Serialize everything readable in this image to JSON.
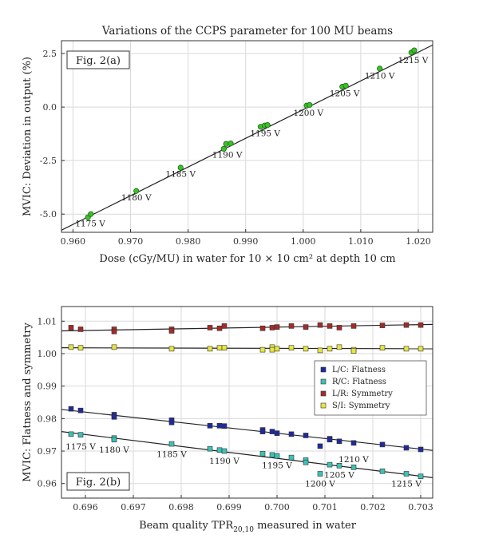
{
  "chart_data": [
    {
      "type": "scatter",
      "title": "Variations of the CCPS parameter for 100 MU beams",
      "panel_label": "Fig. 2(a)",
      "xlabel": "Dose (cGy/MU) in water for 10 × 10 cm² at depth 10 cm",
      "ylabel": "MVIC: Deviation in output (%)",
      "xlim": [
        0.958,
        1.0225
      ],
      "ylim": [
        -5.85,
        3.1
      ],
      "xticks": [
        0.96,
        0.97,
        0.98,
        0.99,
        1.0,
        1.01,
        1.02
      ],
      "xtick_labels": [
        "0.960",
        "0.970",
        "0.980",
        "0.990",
        "1.000",
        "1.010",
        "1.020"
      ],
      "yticks": [
        -5.0,
        -2.5,
        0.0,
        2.5
      ],
      "ytick_labels": [
        "-5.0",
        "-2.5",
        "0.0",
        "2.5"
      ],
      "grid": true,
      "marker_color": "#3cbf2b",
      "line_color": "#222222",
      "points": [
        {
          "x": 0.9626,
          "y": -5.15
        },
        {
          "x": 0.9631,
          "y": -5.0
        },
        {
          "x": 0.971,
          "y": -3.92
        },
        {
          "x": 0.9787,
          "y": -2.83
        },
        {
          "x": 0.9862,
          "y": -1.95
        },
        {
          "x": 0.9866,
          "y": -1.72
        },
        {
          "x": 0.9874,
          "y": -1.7
        },
        {
          "x": 0.9926,
          "y": -0.92
        },
        {
          "x": 0.9933,
          "y": -0.86
        },
        {
          "x": 0.9938,
          "y": -0.84
        },
        {
          "x": 1.0006,
          "y": 0.07
        },
        {
          "x": 1.0011,
          "y": 0.1
        },
        {
          "x": 1.0068,
          "y": 0.95
        },
        {
          "x": 1.0074,
          "y": 1.0
        },
        {
          "x": 1.0133,
          "y": 1.8
        },
        {
          "x": 1.0188,
          "y": 2.55
        },
        {
          "x": 1.0193,
          "y": 2.65
        }
      ],
      "fit_line": [
        {
          "x": 0.958,
          "y": -5.75
        },
        {
          "x": 1.0225,
          "y": 2.9
        }
      ],
      "annotations": [
        {
          "text": "1175 V",
          "x": 0.963,
          "y": -5.42
        },
        {
          "text": "1180 V",
          "x": 0.971,
          "y": -4.2
        },
        {
          "text": "1185 V",
          "x": 0.9787,
          "y": -3.1
        },
        {
          "text": "1190 V",
          "x": 0.9868,
          "y": -2.22
        },
        {
          "text": "1195 V",
          "x": 0.9934,
          "y": -1.2
        },
        {
          "text": "1200 V",
          "x": 1.0009,
          "y": -0.25
        },
        {
          "text": "1205 V",
          "x": 1.0072,
          "y": 0.65
        },
        {
          "text": "1210 V",
          "x": 1.0133,
          "y": 1.47
        },
        {
          "text": "1215 V",
          "x": 1.0191,
          "y": 2.2
        }
      ]
    },
    {
      "type": "scatter",
      "panel_label": "Fig. 2(b)",
      "xlabel": "Beam quality TPR",
      "xlabel_subscript": "20,10",
      "xlabel_suffix": " measured in water",
      "ylabel": "MVIC: Flatness and symmetry",
      "xlim": [
        0.6955,
        0.70325
      ],
      "ylim": [
        0.9555,
        1.0145
      ],
      "xticks": [
        0.696,
        0.697,
        0.698,
        0.699,
        0.7,
        0.701,
        0.702,
        0.703
      ],
      "xtick_labels": [
        "0.696",
        "0.697",
        "0.698",
        "0.699",
        "0.700",
        "0.701",
        "0.702",
        "0.703"
      ],
      "yticks": [
        0.96,
        0.97,
        0.98,
        0.99,
        1.0,
        1.01
      ],
      "ytick_labels": [
        "0.96",
        "0.97",
        "0.98",
        "0.99",
        "1.00",
        "1.01"
      ],
      "grid": true,
      "legend": "right",
      "series": [
        {
          "name": "L/C: Flatness",
          "color": "#1f2b9a",
          "x": [
            0.6957,
            0.6959,
            0.6966,
            0.6966,
            0.6978,
            0.6978,
            0.6986,
            0.6988,
            0.6989,
            0.6997,
            0.6997,
            0.6999,
            0.7,
            0.7003,
            0.7006,
            0.7009,
            0.7011,
            0.7011,
            0.7013,
            0.7016,
            0.7022,
            0.7027,
            0.703
          ],
          "y": [
            0.983,
            0.9825,
            0.9812,
            0.9805,
            0.9795,
            0.9788,
            0.9778,
            0.9778,
            0.9777,
            0.9765,
            0.976,
            0.976,
            0.9755,
            0.9752,
            0.9748,
            0.9715,
            0.9738,
            0.9735,
            0.973,
            0.9725,
            0.972,
            0.971,
            0.9705
          ]
        },
        {
          "name": "R/C: Flatness",
          "color": "#3cc1b5",
          "x": [
            0.6957,
            0.6959,
            0.6966,
            0.6966,
            0.6978,
            0.6986,
            0.6988,
            0.6989,
            0.6997,
            0.6999,
            0.7,
            0.7003,
            0.7006,
            0.7006,
            0.7009,
            0.7011,
            0.7013,
            0.7016,
            0.7022,
            0.7027,
            0.703
          ],
          "y": [
            0.9752,
            0.975,
            0.974,
            0.9735,
            0.9722,
            0.9707,
            0.9703,
            0.97,
            0.9692,
            0.9688,
            0.9685,
            0.968,
            0.9672,
            0.9665,
            0.963,
            0.9658,
            0.9655,
            0.965,
            0.9638,
            0.963,
            0.9622
          ]
        },
        {
          "name": "L/R: Symmetry",
          "color": "#a52a2a",
          "x": [
            0.6957,
            0.6959,
            0.6966,
            0.6966,
            0.6978,
            0.6978,
            0.6986,
            0.6988,
            0.6989,
            0.6997,
            0.6999,
            0.7,
            0.7003,
            0.7006,
            0.7009,
            0.7011,
            0.7013,
            0.7016,
            0.7022,
            0.7027,
            0.703
          ],
          "y": [
            1.008,
            1.0075,
            1.0075,
            1.0068,
            1.0075,
            1.007,
            1.008,
            1.0078,
            1.0085,
            1.0078,
            1.008,
            1.0082,
            1.0085,
            1.0082,
            1.0088,
            1.0085,
            1.008,
            1.0085,
            1.0087,
            1.0088,
            1.0088
          ]
        },
        {
          "name": "S/I: Symmetry",
          "color": "#e6e640",
          "x": [
            0.6957,
            0.6959,
            0.6966,
            0.6978,
            0.6986,
            0.6988,
            0.6989,
            0.6997,
            0.6999,
            0.6999,
            0.7,
            0.7003,
            0.7006,
            0.7009,
            0.7011,
            0.7013,
            0.7016,
            0.7016,
            0.7022,
            0.7027,
            0.703
          ],
          "y": [
            1.002,
            1.0018,
            1.002,
            1.0015,
            1.0015,
            1.0018,
            1.0018,
            1.0012,
            1.002,
            1.0012,
            1.0015,
            1.0018,
            1.0015,
            1.001,
            1.0015,
            1.002,
            1.0012,
            1.0008,
            1.0018,
            1.0015,
            1.0015
          ]
        }
      ],
      "fit_lines": [
        {
          "color": "#222222",
          "points": [
            {
              "x": 0.6955,
              "y": 1.007
            },
            {
              "x": 0.70325,
              "y": 1.009
            }
          ]
        },
        {
          "color": "#222222",
          "points": [
            {
              "x": 0.6955,
              "y": 1.0018
            },
            {
              "x": 0.70325,
              "y": 1.0015
            }
          ]
        },
        {
          "color": "#222222",
          "points": [
            {
              "x": 0.6955,
              "y": 0.9828
            },
            {
              "x": 0.70325,
              "y": 0.9702
            }
          ]
        },
        {
          "color": "#222222",
          "points": [
            {
              "x": 0.6955,
              "y": 0.976
            },
            {
              "x": 0.70325,
              "y": 0.9618
            }
          ]
        }
      ],
      "annotations": [
        {
          "text": "1175 V",
          "x": 0.6959,
          "y": 0.9715
        },
        {
          "text": "1180 V",
          "x": 0.6966,
          "y": 0.9705
        },
        {
          "text": "1185 V",
          "x": 0.6978,
          "y": 0.9692
        },
        {
          "text": "1190 V",
          "x": 0.6989,
          "y": 0.967
        },
        {
          "text": "1195 V",
          "x": 0.7,
          "y": 0.9657
        },
        {
          "text": "1200 V",
          "x": 0.7009,
          "y": 0.96
        },
        {
          "text": "1205 V",
          "x": 0.7013,
          "y": 0.9627
        },
        {
          "text": "1210 V",
          "x": 0.7016,
          "y": 0.9675
        },
        {
          "text": "1215 V",
          "x": 0.7027,
          "y": 0.96
        }
      ]
    }
  ]
}
